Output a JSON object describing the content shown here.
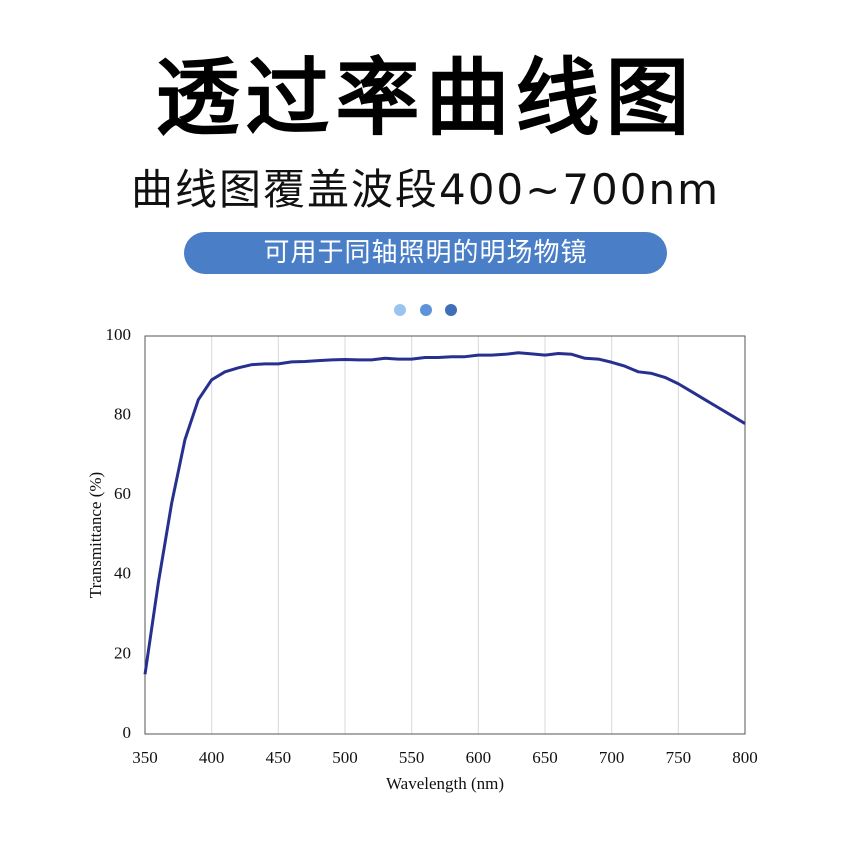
{
  "chart_data": {
    "type": "line",
    "title": "透过率曲线图",
    "subtitle": "曲线图覆盖波段400~700nm",
    "annotations": [
      "可用于同轴照明的明场物镜"
    ],
    "xlabel": "Wavelength (nm)",
    "ylabel": "Transmittance (%)",
    "x": [
      350,
      360,
      370,
      380,
      390,
      400,
      410,
      420,
      430,
      440,
      450,
      460,
      470,
      480,
      490,
      500,
      510,
      520,
      530,
      540,
      550,
      560,
      570,
      580,
      590,
      600,
      610,
      620,
      630,
      640,
      650,
      660,
      670,
      680,
      690,
      700,
      710,
      720,
      730,
      740,
      750,
      760,
      770,
      780,
      790,
      800
    ],
    "series": [
      {
        "name": "Transmittance",
        "color": "#27308f",
        "values": [
          15,
          38,
          58,
          74,
          84,
          89,
          91,
          92,
          92.8,
          93,
          93,
          93.5,
          93.6,
          93.8,
          94,
          94.1,
          94,
          94,
          94.4,
          94.2,
          94.2,
          94.6,
          94.6,
          94.8,
          94.8,
          95.2,
          95.2,
          95.4,
          95.8,
          95.5,
          95.2,
          95.6,
          95.4,
          94.4,
          94.2,
          93.4,
          92.4,
          91,
          90.6,
          89.6,
          88,
          86,
          84,
          82,
          80,
          78
        ]
      }
    ],
    "xlim": [
      350,
      800
    ],
    "ylim": [
      0,
      100
    ],
    "xticks": [
      350,
      400,
      450,
      500,
      550,
      600,
      650,
      700,
      750,
      800
    ],
    "yticks": [
      0,
      20,
      40,
      60,
      80,
      100
    ],
    "xgrid": true,
    "ygrid": false
  }
}
